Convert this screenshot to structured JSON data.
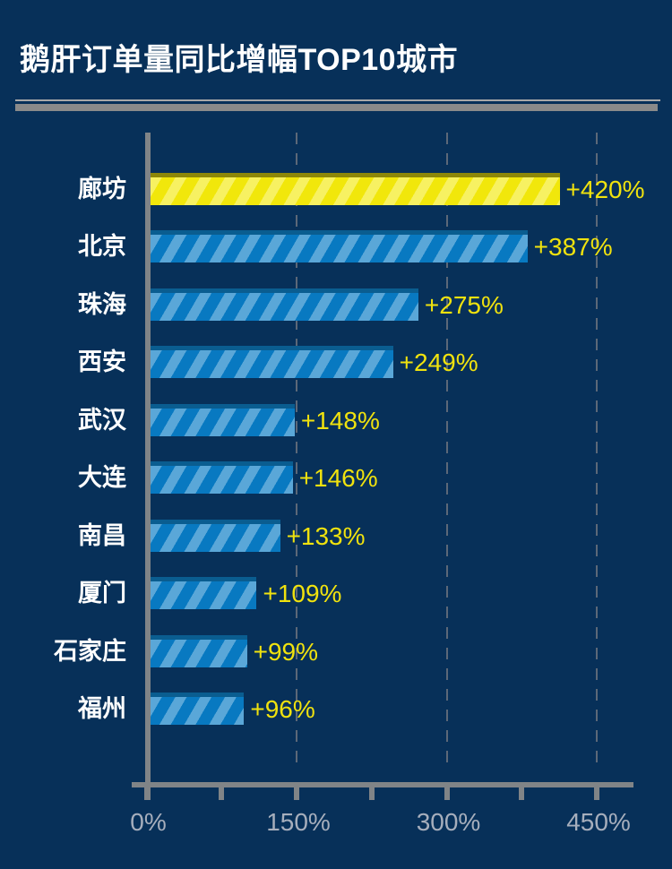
{
  "title": "鹅肝订单量同比增幅TOP10城市",
  "colors": {
    "background": "#073059",
    "title": "#ffffff",
    "divider_thin": "#a8a8a8",
    "divider_thick": "#8a8a8a",
    "axis": "#808487",
    "tick_label": "#a6aebc",
    "gridline": "#5c6878",
    "bar_blue": "#0879c1",
    "bar_blue_stripe": "#5aa7d8",
    "bar_blue_top": "#0a5d90",
    "bar_yellow": "#f1e70b",
    "bar_yellow_stripe": "#f7f162",
    "bar_yellow_top": "#8d8708",
    "value_label": "#f0e20e"
  },
  "chart_data": {
    "type": "bar",
    "orientation": "horizontal",
    "title": "鹅肝订单量同比增幅TOP10城市",
    "categories": [
      "廊坊",
      "北京",
      "珠海",
      "西安",
      "武汉",
      "大连",
      "南昌",
      "厦门",
      "石家庄",
      "福州"
    ],
    "values": [
      420,
      387,
      275,
      249,
      148,
      146,
      133,
      109,
      99,
      96
    ],
    "value_labels": [
      "+420%",
      "+387%",
      "+275%",
      "+249%",
      "+148%",
      "+146%",
      "+133%",
      "+109%",
      "+99%",
      "+96%"
    ],
    "highlight_index": 0,
    "highlight_category": "廊坊",
    "unit": "%",
    "xlabel": "",
    "ylabel": "",
    "xlim": [
      0,
      485
    ],
    "legend": null,
    "axis": {
      "minor_ticks_pct": [
        0,
        75,
        150,
        225,
        300,
        375,
        450
      ],
      "labeled_ticks": [
        {
          "pct": 0,
          "label": "0%"
        },
        {
          "pct": 150,
          "label": "150%"
        },
        {
          "pct": 300,
          "label": "300%"
        },
        {
          "pct": 450,
          "label": "450%"
        }
      ],
      "gridlines_pct": [
        150,
        300,
        450
      ],
      "grid_style": "dashed-vertical"
    }
  }
}
